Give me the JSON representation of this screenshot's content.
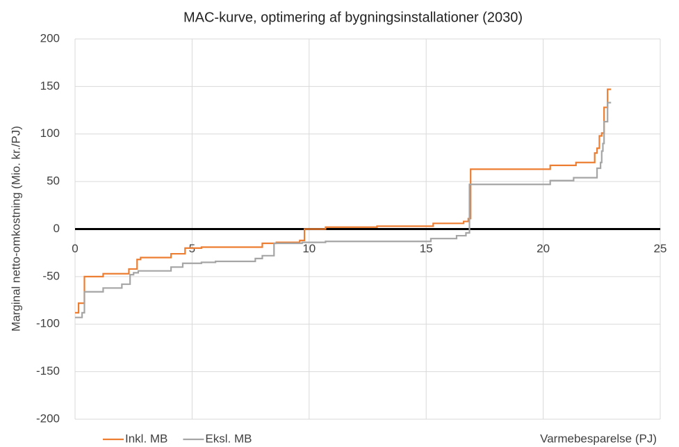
{
  "chart_data": {
    "type": "line",
    "title": "MAC-kurve, optimering af bygningsinstallationer (2030)",
    "x_label": "Varmebesparelse (PJ)",
    "y_label": "Marginal netto-omkostning (Mio. kr./PJ)",
    "xlim": [
      0,
      25
    ],
    "xticks": [
      0,
      5,
      10,
      15,
      20,
      25
    ],
    "ylim": [
      -200,
      200
    ],
    "yticks": [
      -200,
      -150,
      -100,
      -50,
      0,
      50,
      100,
      150,
      200
    ],
    "grid": true,
    "legend": "bottom-left",
    "series": [
      {
        "name": "Inkl. MB",
        "color": "#ed7d31",
        "x": [
          0,
          0.15,
          0.15,
          0.4,
          0.4,
          1.2,
          1.2,
          2.3,
          2.3,
          2.65,
          2.65,
          2.8,
          2.8,
          4.1,
          4.1,
          4.7,
          4.7,
          5.4,
          5.4,
          8.0,
          8.0,
          8.6,
          8.6,
          9.6,
          9.6,
          9.8,
          9.8,
          10.7,
          10.7,
          12.9,
          12.9,
          15.3,
          15.3,
          16.6,
          16.6,
          16.8,
          16.8,
          16.9,
          16.9,
          20.3,
          20.3,
          21.4,
          21.4,
          22.2,
          22.2,
          22.3,
          22.3,
          22.4,
          22.4,
          22.5,
          22.5,
          22.6,
          22.6,
          22.75,
          22.75,
          22.9
        ],
        "values": [
          -88,
          -88,
          -78,
          -78,
          -50,
          -50,
          -47,
          -47,
          -42,
          -42,
          -32,
          -32,
          -30,
          -30,
          -26,
          -26,
          -20,
          -20,
          -19,
          -19,
          -15,
          -15,
          -14,
          -14,
          -12,
          -12,
          0,
          0,
          2,
          2,
          3,
          3,
          6,
          6,
          8,
          8,
          11,
          11,
          63,
          63,
          67,
          67,
          70,
          70,
          80,
          80,
          85,
          85,
          98,
          98,
          101,
          101,
          128,
          128,
          147,
          147
        ]
      },
      {
        "name": "Eksl. MB",
        "color": "#a5a5a5",
        "x": [
          0,
          0.3,
          0.3,
          0.4,
          0.4,
          1.2,
          1.2,
          2.0,
          2.0,
          2.35,
          2.35,
          2.5,
          2.5,
          2.7,
          2.7,
          4.1,
          4.1,
          4.6,
          4.6,
          5.4,
          5.4,
          6.0,
          6.0,
          7.7,
          7.7,
          8.0,
          8.0,
          8.5,
          8.5,
          9.7,
          9.7,
          10.7,
          10.7,
          15.2,
          15.2,
          16.3,
          16.3,
          16.7,
          16.7,
          16.85,
          16.85,
          20.3,
          20.3,
          21.3,
          21.3,
          22.3,
          22.3,
          22.45,
          22.45,
          22.5,
          22.5,
          22.55,
          22.55,
          22.6,
          22.6,
          22.75,
          22.75,
          22.9
        ],
        "values": [
          -93,
          -93,
          -88,
          -88,
          -66,
          -66,
          -62,
          -62,
          -58,
          -58,
          -48,
          -48,
          -46,
          -46,
          -44,
          -44,
          -40,
          -40,
          -36,
          -36,
          -35,
          -35,
          -34,
          -34,
          -31,
          -31,
          -28,
          -28,
          -15,
          -15,
          -14,
          -14,
          -13,
          -13,
          -10,
          -10,
          -7,
          -7,
          -4,
          -4,
          47,
          47,
          51,
          51,
          54,
          54,
          64,
          64,
          70,
          70,
          82,
          82,
          90,
          90,
          113,
          113,
          133,
          133
        ]
      }
    ]
  }
}
